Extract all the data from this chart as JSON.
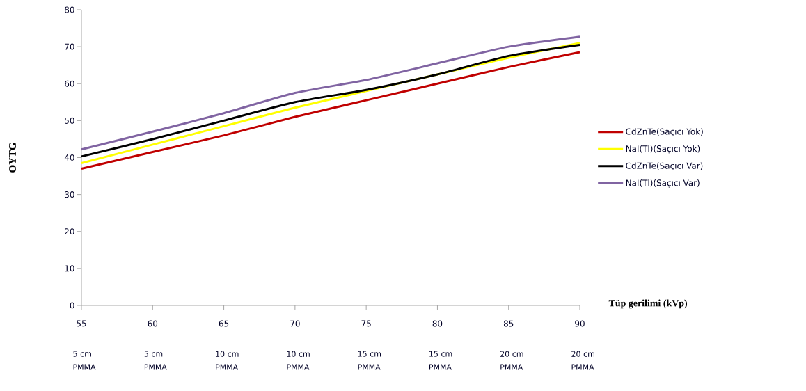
{
  "chart_data": {
    "type": "line",
    "xlabel": "Tüp gerilimi (kVp)",
    "ylabel": "OYTG",
    "categories": [
      "55",
      "60",
      "65",
      "70",
      "75",
      "80",
      "85",
      "90"
    ],
    "annotations": [
      "5 cm PMMA",
      "5 cm PMMA",
      "10 cm PMMA",
      "10 cm PMMA",
      "15 cm PMMA",
      "15 cm PMMA",
      "20 cm PMMA",
      "20 cm PMMA"
    ],
    "series": [
      {
        "name": "CdZnTe(Saçıcı Yok)",
        "color": "#c00000",
        "values": [
          37,
          41.5,
          46,
          51,
          55.5,
          60,
          64.5,
          68.5
        ]
      },
      {
        "name": "NaI(Tl)(Saçıcı Yok)",
        "color": "#ffff00",
        "values": [
          38.5,
          43.5,
          48.5,
          53.5,
          58,
          62.5,
          67,
          71
        ]
      },
      {
        "name": "CdZnTe(Saçıcı Var)",
        "color": "#000000",
        "values": [
          40.3,
          45,
          50,
          55,
          58.3,
          62.5,
          67.5,
          70.5
        ]
      },
      {
        "name": "NaI(Tl)(Saçıcı Var)",
        "color": "#8064a2",
        "values": [
          42.2,
          47,
          52,
          57.5,
          61,
          65.5,
          70,
          72.7
        ]
      }
    ],
    "ylim": [
      0,
      80
    ],
    "yticks": [
      0,
      10,
      20,
      30,
      40,
      50,
      60,
      70,
      80
    ],
    "legend": "right"
  }
}
